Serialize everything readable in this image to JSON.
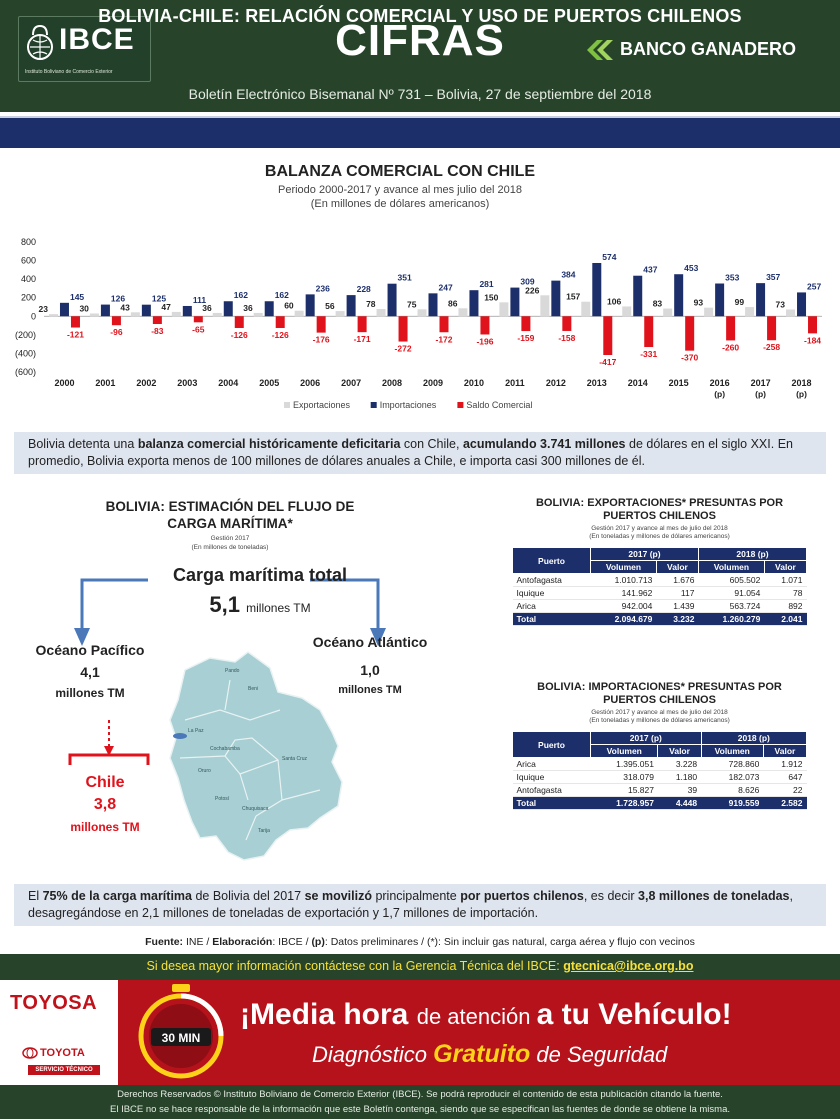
{
  "header": {
    "logo_text": "IBCE",
    "logo_subtitle": "Instituto Boliviano de Comercio Exterior",
    "title": "CIFRAS",
    "sponsor": "BANCO GANADERO",
    "bulletin": "Boletín Electrónico Bisemanal Nº 731 – Bolivia, 27 de septiembre del 2018"
  },
  "banner": "BOLIVIA-CHILE: RELACIÓN COMERCIAL Y USO DE PUERTOS CHILENOS",
  "chart_data": {
    "type": "bar",
    "title": "BALANZA COMERCIAL CON CHILE",
    "subtitle_1": "Periodo 2000-2017 y avance al mes julio del 2018",
    "subtitle_2": "(En millones de dólares americanos)",
    "ylim": [
      -600,
      800
    ],
    "yticks": [
      "800",
      "600",
      "400",
      "200",
      "0",
      "(200)",
      "(400)",
      "(600)"
    ],
    "categories": [
      "2000",
      "2001",
      "2002",
      "2003",
      "2004",
      "2005",
      "2006",
      "2007",
      "2008",
      "2009",
      "2010",
      "2011",
      "2012",
      "2013",
      "2014",
      "2015",
      "2016",
      "2017",
      "2018"
    ],
    "category_notes": [
      "",
      "",
      "",
      "",
      "",
      "",
      "",
      "",
      "",
      "",
      "",
      "",
      "",
      "",
      "",
      "",
      "(p)",
      "(p)",
      "(p)"
    ],
    "series": [
      {
        "name": "Exportaciones",
        "color": "#d9d9d9",
        "values": [
          23,
          30,
          43,
          47,
          36,
          36,
          60,
          56,
          78,
          75,
          86,
          150,
          226,
          157,
          106,
          83,
          93,
          99,
          73
        ]
      },
      {
        "name": "Importaciones",
        "color": "#1c2f6a",
        "values": [
          145,
          126,
          125,
          111,
          162,
          162,
          236,
          228,
          351,
          247,
          281,
          309,
          384,
          574,
          437,
          453,
          353,
          357,
          257
        ]
      },
      {
        "name": "Saldo Comercial",
        "color": "#e0121b",
        "values": [
          -121,
          -96,
          -83,
          -65,
          -126,
          -126,
          -176,
          -171,
          -272,
          -172,
          -196,
          -159,
          -158,
          -417,
          -331,
          -370,
          -260,
          -258,
          -184
        ]
      }
    ],
    "legend_position": "bottom"
  },
  "paragraph1": {
    "p1": "Bolivia detenta una ",
    "b1": "balanza comercial históricamente deficitaria",
    "p2": " con Chile, ",
    "b2": "acumulando 3.741 millones",
    "p3": " de dólares en el siglo XXI. En promedio, Bolivia exporta menos de 100 millones de dólares anuales a Chile, e importa casi 300 millones de él."
  },
  "flow": {
    "title": "BOLIVIA: ESTIMACIÓN DEL FLUJO DE CARGA MARÍTIMA*",
    "sub1": "Gestión 2017",
    "sub2": "(En millones de toneladas)",
    "total_label": "Carga marítima total",
    "total_value": "5,1",
    "total_unit": "millones TM",
    "pacific_name": "Océano Pacífico",
    "pacific_value": "4,1",
    "pacific_unit": "millones TM",
    "atlantic_name": "Océano Atlántico",
    "atlantic_value": "1,0",
    "atlantic_unit": "millones TM",
    "chile_name": "Chile",
    "chile_value": "3,8",
    "chile_unit": "millones TM",
    "map_labels": [
      "La Paz",
      "Beni",
      "Pando",
      "Cochabamba",
      "Oruro",
      "Potosí",
      "Chuquisaca",
      "Tarija",
      "Santa Cruz"
    ]
  },
  "exports_table": {
    "title": "BOLIVIA: EXPORTACIONES* PRESUNTAS POR PUERTOS CHILENOS",
    "sub1": "Gestión 2017 y avance al mes de julio del 2018",
    "sub2": "(En toneladas y millones de dólares americanos)",
    "col_port": "Puerto",
    "year1": "2017 (p)",
    "year2": "2018 (p)",
    "col_vol": "Volumen",
    "col_val": "Valor",
    "rows": [
      {
        "port": "Antofagasta",
        "v17": "1.010.713",
        "val17": "1.676",
        "v18": "605.502",
        "val18": "1.071"
      },
      {
        "port": "Iquique",
        "v17": "141.962",
        "val17": "117",
        "v18": "91.054",
        "val18": "78"
      },
      {
        "port": "Arica",
        "v17": "942.004",
        "val17": "1.439",
        "v18": "563.724",
        "val18": "892"
      }
    ],
    "total": {
      "port": "Total",
      "v17": "2.094.679",
      "val17": "3.232",
      "v18": "1.260.279",
      "val18": "2.041"
    }
  },
  "imports_table": {
    "title": "BOLIVIA: IMPORTACIONES* PRESUNTAS POR PUERTOS CHILENOS",
    "sub1": "Gestión 2017 y avance al mes de julio del 2018",
    "sub2": "(En toneladas y millones de dólares americanos)",
    "col_port": "Puerto",
    "year1": "2017 (p)",
    "year2": "2018 (p)",
    "col_vol": "Volumen",
    "col_val": "Valor",
    "rows": [
      {
        "port": "Arica",
        "v17": "1.395.051",
        "val17": "3.228",
        "v18": "728.860",
        "val18": "1.912"
      },
      {
        "port": "Iquique",
        "v17": "318.079",
        "val17": "1.180",
        "v18": "182.073",
        "val18": "647"
      },
      {
        "port": "Antofagasta",
        "v17": "15.827",
        "val17": "39",
        "v18": "8.626",
        "val18": "22"
      }
    ],
    "total": {
      "port": "Total",
      "v17": "1.728.957",
      "val17": "4.448",
      "v18": "919.559",
      "val18": "2.582"
    }
  },
  "paragraph2": {
    "p1": "El ",
    "b1": "75% de la carga marítima",
    "p2": " de Bolivia del 2017 ",
    "b2": "se movilizó",
    "p3": " principalmente ",
    "b3": "por puertos chilenos",
    "p4": ", es decir ",
    "b4": "3,8 millones de toneladas",
    "p5": ", desagregándose en 2,1 millones de toneladas de exportación y 1,7 millones de importación."
  },
  "source": {
    "k1": "Fuente:",
    "t1": " INE / ",
    "k2": "Elaboración",
    "t2": ": IBCE / ",
    "k3": "(p)",
    "t3": ": Datos preliminares / (*): Sin incluir gas natural, carga aérea y flujo con vecinos"
  },
  "contact": {
    "text": "Si desea mayor información contáctese con la Gerencia Técnica del IBCE: ",
    "email": "gtecnica@ibce.org.bo"
  },
  "ad": {
    "brand": "TOYOSA",
    "toyota": "TOYOTA",
    "servicio": "SERVICIO TÉCNICO",
    "timer": "30 MIN",
    "head1_a": "¡Media hora ",
    "head1_b": "de atención ",
    "head1_c": "a tu Vehículo!",
    "head2_a": "Diagnóstico ",
    "head2_b": "Gratuito",
    "head2_c": " de Seguridad"
  },
  "footer": {
    "line1": "Derechos Reservados © Instituto Boliviano de Comercio Exterior (IBCE). Se podrá reproducir el contenido de esta publicación citando la fuente.",
    "line2": "El IBCE no se hace responsable de la información que este Boletín contenga, siendo que se especifican las fuentes de donde se obtiene la misma."
  }
}
